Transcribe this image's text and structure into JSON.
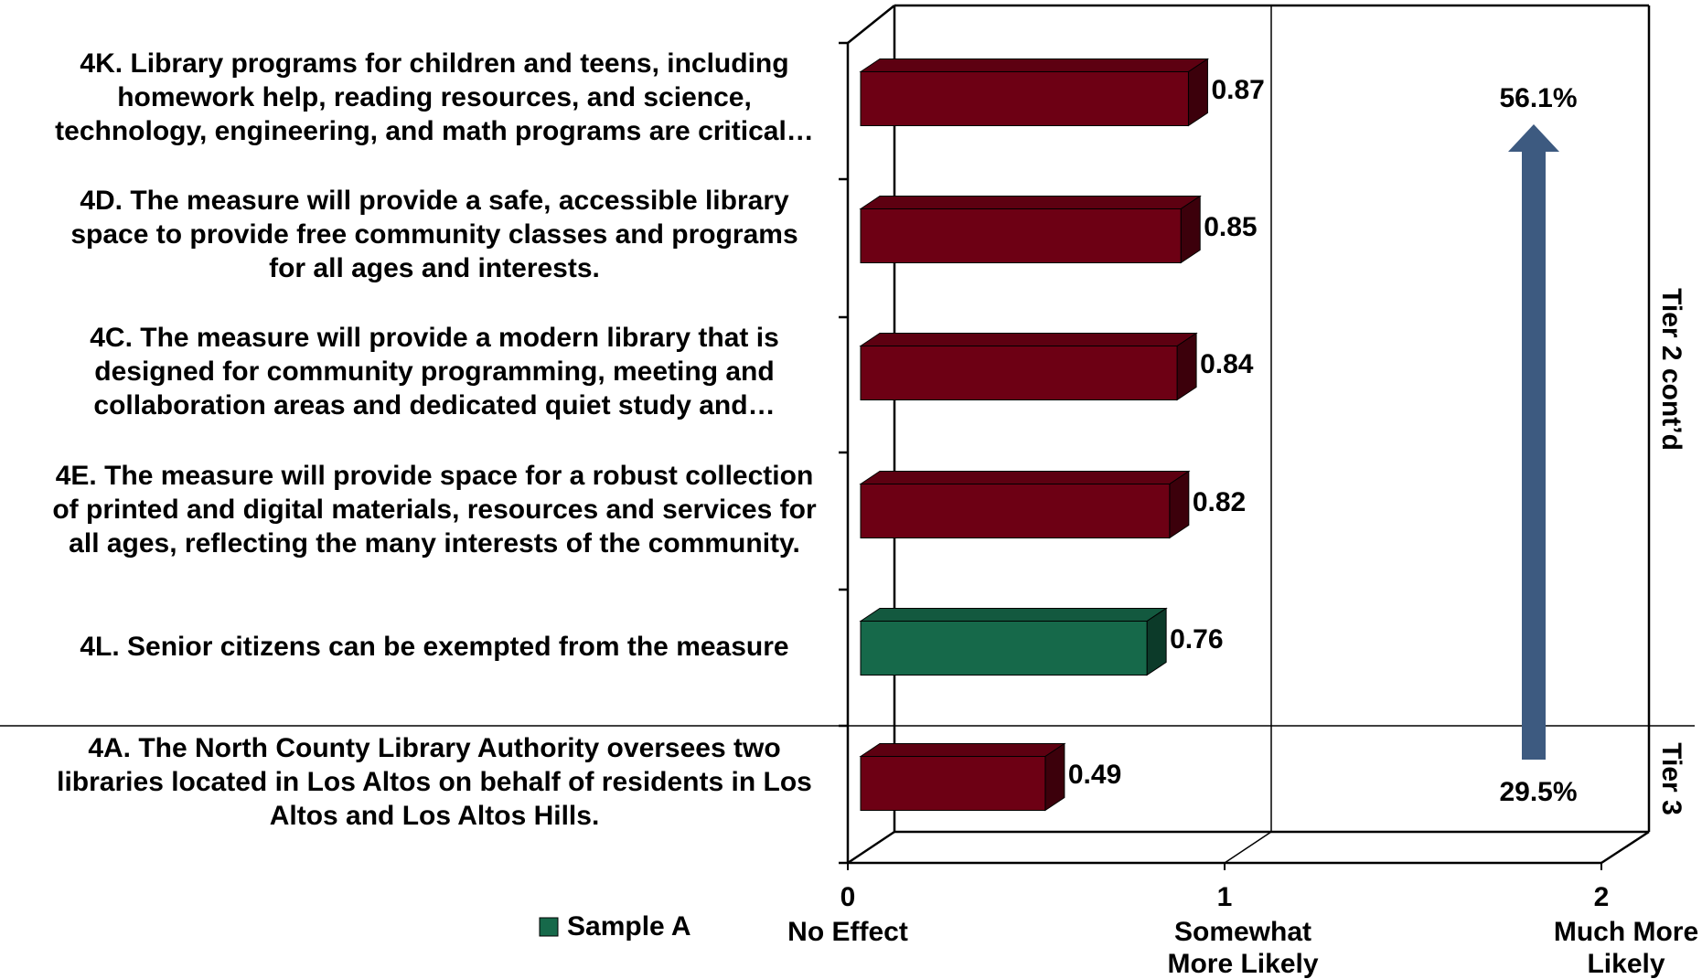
{
  "chart_data": {
    "type": "bar3d",
    "categories": [
      [
        "4K. Library programs for children and teens, including",
        "homework help, reading resources, and science,",
        "technology, engineering, and math programs are critical…"
      ],
      [
        "4D. The measure will provide a safe, accessible library",
        "space to provide free community classes and programs",
        "for all ages and interests."
      ],
      [
        "4C. The measure will provide a modern library that is",
        "designed for community programming, meeting and",
        "collaboration areas and dedicated quiet study and…"
      ],
      [
        "4E. The measure will provide space for a robust collection",
        "of printed and digital materials, resources and services for",
        "all ages, reflecting the many interests of the community."
      ],
      [
        "4L. Senior citizens can be exempted from the measure"
      ],
      [
        "4A. The North County Library Authority oversees two",
        "libraries located in Los Altos on behalf of residents in Los",
        "Altos and Los Altos Hills."
      ]
    ],
    "values": [
      0.87,
      0.85,
      0.84,
      0.82,
      0.76,
      0.49
    ],
    "colors": [
      "#6d0014",
      "#6d0014",
      "#6d0014",
      "#6d0014",
      "#16694a",
      "#6d0014"
    ],
    "xlim": [
      0,
      2
    ],
    "xticks": [
      0,
      1,
      2
    ],
    "xtick_captions": [
      [
        "No Effect"
      ],
      [
        "Somewhat",
        "More  Likely"
      ],
      [
        "Much More",
        "Likely"
      ]
    ],
    "legend": [
      {
        "name": "Sample A",
        "color": "#16694a"
      }
    ],
    "tiers": [
      "Tier 2 cont’d",
      "Tier 3"
    ],
    "annotations": [
      "56.1%",
      "29.5%"
    ],
    "arrow_color": "#3d5a80"
  }
}
